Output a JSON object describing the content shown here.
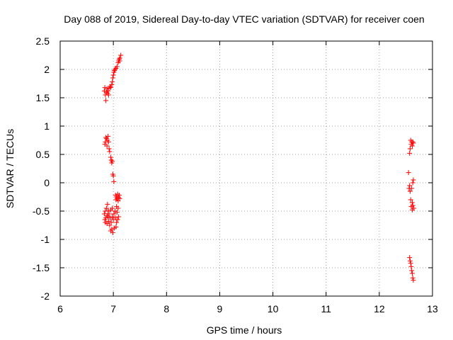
{
  "chart_data": {
    "type": "scatter",
    "title": "Day 088 of 2019, Sidereal Day-to-day VTEC variation (SDTVAR) for receiver coen",
    "xlabel": "GPS time / hours",
    "ylabel": "SDTVAR / TECUs",
    "xlim": [
      6,
      13
    ],
    "ylim": [
      -2,
      2.5
    ],
    "xticks": [
      "6",
      "7",
      "8",
      "9",
      "10",
      "11",
      "12",
      "13"
    ],
    "yticks": [
      "2.5",
      "2",
      "1.5",
      "1",
      "0.5",
      "0",
      "-0.5",
      "-1",
      "-1.5",
      "-2"
    ],
    "grid": true,
    "marker": "+",
    "color": "#ff0000",
    "series": [
      {
        "name": "SDTVAR",
        "points": [
          [
            6.83,
            1.62
          ],
          [
            6.84,
            1.68
          ],
          [
            6.85,
            1.55
          ],
          [
            6.86,
            1.45
          ],
          [
            6.87,
            1.6
          ],
          [
            6.88,
            1.66
          ],
          [
            6.89,
            1.58
          ],
          [
            6.9,
            1.62
          ],
          [
            6.91,
            1.55
          ],
          [
            6.92,
            1.67
          ],
          [
            6.94,
            1.7
          ],
          [
            6.95,
            1.68
          ],
          [
            6.97,
            1.73
          ],
          [
            6.98,
            1.78
          ],
          [
            6.99,
            1.85
          ],
          [
            7.0,
            1.9
          ],
          [
            7.01,
            1.95
          ],
          [
            7.02,
            1.98
          ],
          [
            7.03,
            2.0
          ],
          [
            7.05,
            2.02
          ],
          [
            7.07,
            2.05
          ],
          [
            7.09,
            2.12
          ],
          [
            7.1,
            2.15
          ],
          [
            7.11,
            2.18
          ],
          [
            7.12,
            2.2
          ],
          [
            7.14,
            2.25
          ],
          [
            7.12,
            2.15
          ],
          [
            6.84,
            0.68
          ],
          [
            6.85,
            0.72
          ],
          [
            6.86,
            0.8
          ],
          [
            6.87,
            0.78
          ],
          [
            6.88,
            0.65
          ],
          [
            6.89,
            0.75
          ],
          [
            6.9,
            0.82
          ],
          [
            6.91,
            0.72
          ],
          [
            6.92,
            0.6
          ],
          [
            6.93,
            0.55
          ],
          [
            6.95,
            0.45
          ],
          [
            6.96,
            0.4
          ],
          [
            6.97,
            0.35
          ],
          [
            6.98,
            0.38
          ],
          [
            6.99,
            0.15
          ],
          [
            7.0,
            0.12
          ],
          [
            7.01,
            0.02
          ],
          [
            6.83,
            -0.55
          ],
          [
            6.84,
            -0.65
          ],
          [
            6.85,
            -0.7
          ],
          [
            6.85,
            -0.5
          ],
          [
            6.86,
            -0.62
          ],
          [
            6.87,
            -0.45
          ],
          [
            6.88,
            -0.58
          ],
          [
            6.88,
            -0.72
          ],
          [
            6.89,
            -0.38
          ],
          [
            6.9,
            -0.6
          ],
          [
            6.9,
            -0.5
          ],
          [
            6.91,
            -0.68
          ],
          [
            6.92,
            -0.55
          ],
          [
            6.93,
            -0.75
          ],
          [
            6.94,
            -0.62
          ],
          [
            6.95,
            -0.85
          ],
          [
            6.95,
            -0.48
          ],
          [
            6.96,
            -0.7
          ],
          [
            6.97,
            -0.82
          ],
          [
            6.98,
            -0.6
          ],
          [
            6.98,
            -0.45
          ],
          [
            6.99,
            -0.88
          ],
          [
            7.0,
            -0.65
          ],
          [
            7.01,
            -0.55
          ],
          [
            7.02,
            -0.8
          ],
          [
            7.03,
            -0.5
          ],
          [
            7.04,
            -0.62
          ],
          [
            7.05,
            -0.78
          ],
          [
            7.06,
            -0.42
          ],
          [
            7.06,
            -0.7
          ],
          [
            7.07,
            -0.52
          ],
          [
            7.08,
            -0.65
          ],
          [
            7.09,
            -0.45
          ],
          [
            7.1,
            -0.6
          ],
          [
            7.04,
            -0.22
          ],
          [
            7.05,
            -0.3
          ],
          [
            7.06,
            -0.25
          ],
          [
            7.07,
            -0.28
          ],
          [
            7.08,
            -0.2
          ],
          [
            7.09,
            -0.32
          ],
          [
            7.1,
            -0.26
          ],
          [
            7.11,
            -0.22
          ],
          [
            7.12,
            -0.28
          ],
          [
            12.55,
            0.18
          ],
          [
            12.57,
            0.52
          ],
          [
            12.58,
            0.6
          ],
          [
            12.59,
            0.75
          ],
          [
            12.6,
            0.68
          ],
          [
            12.61,
            0.72
          ],
          [
            12.62,
            0.65
          ],
          [
            12.63,
            0.72
          ],
          [
            12.64,
            0.7
          ],
          [
            12.56,
            -0.1
          ],
          [
            12.57,
            -0.05
          ],
          [
            12.58,
            -0.15
          ],
          [
            12.59,
            -0.3
          ],
          [
            12.6,
            -0.42
          ],
          [
            12.61,
            -0.1
          ],
          [
            12.62,
            -0.48
          ],
          [
            12.62,
            -0.35
          ],
          [
            12.63,
            0.0
          ],
          [
            12.63,
            -0.4
          ],
          [
            12.64,
            0.05
          ],
          [
            12.65,
            -0.45
          ],
          [
            12.57,
            -1.32
          ],
          [
            12.58,
            -1.38
          ],
          [
            12.59,
            -1.42
          ],
          [
            12.6,
            -1.48
          ],
          [
            12.61,
            -1.55
          ],
          [
            12.62,
            -1.6
          ],
          [
            12.63,
            -1.68
          ],
          [
            12.64,
            -1.72
          ]
        ]
      }
    ]
  }
}
